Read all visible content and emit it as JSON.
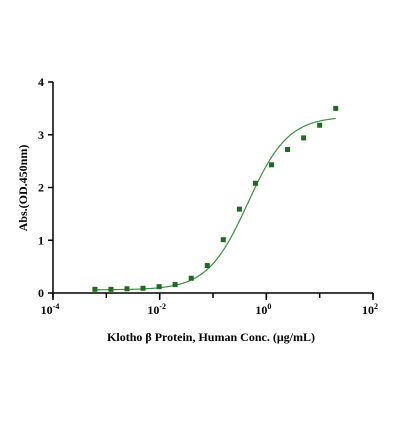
{
  "chart_data": {
    "type": "scatter",
    "xlabel": "Klotho β Protein, Human Conc. (μg/mL)",
    "ylabel": "Abs.(OD.450nm)",
    "x_scale": "log",
    "xlim": [
      0.0001,
      100
    ],
    "ylim": [
      0,
      4
    ],
    "x_ticks": [
      {
        "value": 0.0001,
        "base": "10",
        "exp": "-4"
      },
      {
        "value": 0.01,
        "base": "10",
        "exp": "-2"
      },
      {
        "value": 1,
        "base": "10",
        "exp": "0"
      },
      {
        "value": 100,
        "base": "10",
        "exp": "2"
      }
    ],
    "y_ticks": [
      {
        "value": 0,
        "label": "0"
      },
      {
        "value": 1,
        "label": "1"
      },
      {
        "value": 2,
        "label": "2"
      },
      {
        "value": 3,
        "label": "3"
      },
      {
        "value": 4,
        "label": "4"
      }
    ],
    "grid": false,
    "marker_color": "#1e6b1e",
    "fit_color": "#3f8f3f",
    "series": [
      {
        "points": [
          {
            "x": 0.00061,
            "y": 0.07
          },
          {
            "x": 0.00122,
            "y": 0.07
          },
          {
            "x": 0.00244,
            "y": 0.08
          },
          {
            "x": 0.00488,
            "y": 0.09
          },
          {
            "x": 0.00977,
            "y": 0.12
          },
          {
            "x": 0.0195,
            "y": 0.16
          },
          {
            "x": 0.0391,
            "y": 0.28
          },
          {
            "x": 0.0781,
            "y": 0.52
          },
          {
            "x": 0.156,
            "y": 1.01
          },
          {
            "x": 0.3125,
            "y": 1.59
          },
          {
            "x": 0.625,
            "y": 2.08
          },
          {
            "x": 1.25,
            "y": 2.43
          },
          {
            "x": 2.5,
            "y": 2.72
          },
          {
            "x": 5.0,
            "y": 2.94
          },
          {
            "x": 10.0,
            "y": 3.18
          },
          {
            "x": 20.0,
            "y": 3.5
          }
        ]
      }
    ],
    "fit": {
      "model": "4PL",
      "bottom": 0.06,
      "top": 3.35,
      "ec50": 0.45,
      "hill": 1.15
    }
  }
}
